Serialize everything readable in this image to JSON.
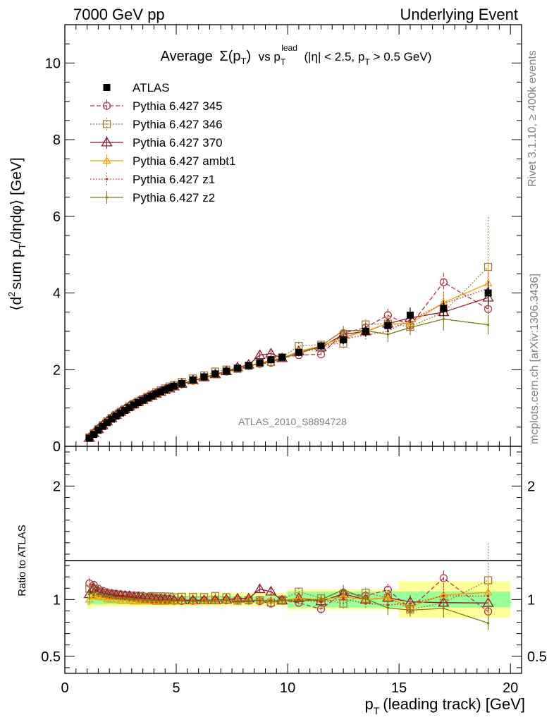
{
  "header": {
    "left": "7000 GeV pp",
    "right": "Underlying Event"
  },
  "side_labels": {
    "rivet": "Rivet 3.1.10, ≥ 400k events",
    "mcplots": "mcplots.cern.ch [arXiv:1306.3436]"
  },
  "watermark": "ATLAS_2010_S8894728",
  "chart_data": [
    {
      "type": "line",
      "panel": "main",
      "title": {
        "prefix": "Average",
        "sigma": "Σ(p",
        "sigma_sub": "T",
        "sigma_close": ")",
        "vs": "vs p",
        "vs_sup": "lead",
        "vs_sub": "T",
        "rest": "(|η| < 2.5, p",
        "rest_sub": "T",
        "rest_tail": "> 0.5 GeV)"
      },
      "ylabel": {
        "open": "⟨d",
        "sup": "2",
        "mid": "sum p",
        "sub": "T",
        "rest": "/dηdφ⟩ [GeV]"
      },
      "xlim": [
        0,
        20.5
      ],
      "ylim": [
        0,
        11
      ],
      "y_ticks": [
        "0",
        "2",
        "4",
        "6",
        "8",
        "10"
      ],
      "legend_position": "top-left",
      "x": [
        1.1,
        1.3,
        1.5,
        1.7,
        1.9,
        2.1,
        2.3,
        2.5,
        2.7,
        2.9,
        3.1,
        3.3,
        3.5,
        3.7,
        3.9,
        4.1,
        4.3,
        4.5,
        4.7,
        4.9,
        5.25,
        5.75,
        6.25,
        6.75,
        7.25,
        7.75,
        8.25,
        8.75,
        9.25,
        9.75,
        10.5,
        11.5,
        12.5,
        13.5,
        14.5,
        15.5,
        17,
        19
      ],
      "data": {
        "name": "ATLAS",
        "values": [
          0.21,
          0.31,
          0.42,
          0.52,
          0.62,
          0.71,
          0.79,
          0.87,
          0.94,
          1.01,
          1.08,
          1.14,
          1.2,
          1.26,
          1.31,
          1.37,
          1.42,
          1.47,
          1.52,
          1.57,
          1.64,
          1.73,
          1.81,
          1.89,
          1.96,
          2.04,
          2.11,
          2.18,
          2.26,
          2.32,
          2.45,
          2.62,
          2.78,
          3.0,
          3.15,
          3.42,
          3.6,
          4.0
        ],
        "err": [
          0.01,
          0.01,
          0.01,
          0.01,
          0.01,
          0.01,
          0.01,
          0.01,
          0.01,
          0.02,
          0.02,
          0.02,
          0.02,
          0.02,
          0.02,
          0.02,
          0.03,
          0.03,
          0.03,
          0.03,
          0.03,
          0.04,
          0.04,
          0.05,
          0.05,
          0.06,
          0.06,
          0.07,
          0.08,
          0.09,
          0.08,
          0.1,
          0.12,
          0.14,
          0.17,
          0.2,
          0.2,
          0.3
        ],
        "color": "#000000"
      },
      "series": [
        {
          "name": "Pythia 6.427 345",
          "color": "#b03a48",
          "marker": "circle-open",
          "dash": "6,3",
          "values": [
            0.24,
            0.35,
            0.46,
            0.56,
            0.66,
            0.75,
            0.83,
            0.91,
            0.98,
            1.05,
            1.12,
            1.18,
            1.24,
            1.29,
            1.34,
            1.39,
            1.44,
            1.48,
            1.53,
            1.55,
            1.62,
            1.71,
            1.8,
            1.88,
            1.95,
            2.03,
            2.09,
            2.15,
            2.18,
            2.31,
            2.38,
            2.4,
            2.95,
            3.1,
            3.42,
            3.15,
            4.28,
            3.58
          ],
          "err": [
            0.01,
            0.01,
            0.01,
            0.01,
            0.01,
            0.01,
            0.01,
            0.01,
            0.01,
            0.02,
            0.02,
            0.02,
            0.02,
            0.02,
            0.02,
            0.02,
            0.03,
            0.03,
            0.03,
            0.03,
            0.03,
            0.04,
            0.04,
            0.05,
            0.05,
            0.06,
            0.06,
            0.07,
            0.08,
            0.09,
            0.08,
            0.1,
            0.12,
            0.14,
            0.17,
            0.2,
            0.25,
            0.3
          ]
        },
        {
          "name": "Pythia 6.427 346",
          "color": "#a08040",
          "marker": "square-open",
          "dash": "2,2",
          "values": [
            0.23,
            0.34,
            0.45,
            0.55,
            0.65,
            0.74,
            0.82,
            0.9,
            0.97,
            1.04,
            1.11,
            1.17,
            1.23,
            1.29,
            1.35,
            1.41,
            1.46,
            1.51,
            1.56,
            1.6,
            1.68,
            1.77,
            1.85,
            1.95,
            2.0,
            2.02,
            2.1,
            2.17,
            2.2,
            2.32,
            2.62,
            2.65,
            2.68,
            3.18,
            3.2,
            3.12,
            3.5,
            4.68
          ],
          "err": [
            0.01,
            0.01,
            0.01,
            0.01,
            0.01,
            0.01,
            0.01,
            0.01,
            0.01,
            0.02,
            0.02,
            0.02,
            0.02,
            0.02,
            0.02,
            0.02,
            0.03,
            0.03,
            0.03,
            0.03,
            0.03,
            0.04,
            0.04,
            0.05,
            0.05,
            0.06,
            0.06,
            0.07,
            0.08,
            0.09,
            0.08,
            0.1,
            0.12,
            0.14,
            0.17,
            0.2,
            0.3,
            1.3
          ]
        },
        {
          "name": "Pythia 6.427 370",
          "color": "#8b1a2e",
          "marker": "triangle-open",
          "dash": "",
          "values": [
            0.22,
            0.34,
            0.45,
            0.55,
            0.65,
            0.74,
            0.82,
            0.9,
            0.97,
            1.04,
            1.1,
            1.16,
            1.21,
            1.27,
            1.32,
            1.37,
            1.42,
            1.47,
            1.51,
            1.56,
            1.63,
            1.72,
            1.8,
            1.88,
            1.96,
            2.06,
            2.13,
            2.38,
            2.42,
            2.3,
            2.48,
            2.58,
            2.92,
            3.0,
            3.2,
            3.35,
            3.5,
            3.88
          ],
          "err": [
            0.01,
            0.01,
            0.01,
            0.01,
            0.01,
            0.01,
            0.01,
            0.01,
            0.01,
            0.02,
            0.02,
            0.02,
            0.02,
            0.02,
            0.02,
            0.02,
            0.03,
            0.03,
            0.03,
            0.03,
            0.03,
            0.04,
            0.04,
            0.05,
            0.05,
            0.06,
            0.06,
            0.07,
            0.08,
            0.09,
            0.08,
            0.1,
            0.12,
            0.14,
            0.17,
            0.2,
            0.25,
            0.3
          ]
        },
        {
          "name": "Pythia 6.427 ambt1",
          "color": "#f5a000",
          "marker": "triangle-open-small",
          "dash": "",
          "values": [
            0.21,
            0.32,
            0.43,
            0.53,
            0.62,
            0.71,
            0.79,
            0.86,
            0.93,
            1.0,
            1.06,
            1.12,
            1.18,
            1.24,
            1.29,
            1.34,
            1.39,
            1.44,
            1.49,
            1.54,
            1.62,
            1.7,
            1.79,
            1.87,
            1.95,
            2.02,
            2.1,
            2.17,
            2.24,
            2.3,
            2.48,
            2.62,
            2.85,
            3.0,
            3.2,
            3.2,
            3.75,
            4.25
          ],
          "err": [
            0.01,
            0.01,
            0.01,
            0.01,
            0.01,
            0.01,
            0.01,
            0.01,
            0.01,
            0.02,
            0.02,
            0.02,
            0.02,
            0.02,
            0.02,
            0.02,
            0.03,
            0.03,
            0.03,
            0.03,
            0.03,
            0.04,
            0.04,
            0.05,
            0.05,
            0.06,
            0.06,
            0.07,
            0.08,
            0.09,
            0.08,
            0.1,
            0.12,
            0.14,
            0.17,
            0.2,
            0.3,
            0.5
          ]
        },
        {
          "name": "Pythia 6.427 z1",
          "color": "#cc1f1f",
          "marker": "dot",
          "dash": "1.5,2.5",
          "values": [
            0.22,
            0.33,
            0.44,
            0.54,
            0.64,
            0.73,
            0.81,
            0.89,
            0.96,
            1.03,
            1.09,
            1.15,
            1.21,
            1.26,
            1.31,
            1.36,
            1.41,
            1.46,
            1.51,
            1.56,
            1.63,
            1.72,
            1.8,
            1.88,
            1.95,
            2.02,
            2.1,
            2.17,
            2.24,
            2.31,
            2.44,
            2.56,
            2.8,
            2.9,
            3.0,
            3.3,
            3.72,
            4.12
          ],
          "err": [
            0.01,
            0.01,
            0.01,
            0.01,
            0.01,
            0.01,
            0.01,
            0.01,
            0.01,
            0.02,
            0.02,
            0.02,
            0.02,
            0.02,
            0.02,
            0.02,
            0.03,
            0.03,
            0.03,
            0.03,
            0.03,
            0.04,
            0.04,
            0.05,
            0.05,
            0.06,
            0.06,
            0.07,
            0.08,
            0.09,
            0.08,
            0.1,
            0.12,
            0.14,
            0.17,
            0.2,
            0.3,
            0.4
          ]
        },
        {
          "name": "Pythia 6.427 z2",
          "color": "#7a7a10",
          "marker": "dot",
          "dash": "",
          "values": [
            0.22,
            0.33,
            0.44,
            0.54,
            0.64,
            0.73,
            0.8,
            0.88,
            0.95,
            1.01,
            1.08,
            1.14,
            1.19,
            1.25,
            1.3,
            1.35,
            1.4,
            1.45,
            1.5,
            1.55,
            1.62,
            1.7,
            1.78,
            1.86,
            1.94,
            2.01,
            2.09,
            2.16,
            2.22,
            2.3,
            2.42,
            2.62,
            3.02,
            3.02,
            2.92,
            3.1,
            3.32,
            3.17
          ],
          "err": [
            0.01,
            0.01,
            0.01,
            0.01,
            0.01,
            0.01,
            0.01,
            0.01,
            0.01,
            0.02,
            0.02,
            0.02,
            0.02,
            0.02,
            0.02,
            0.02,
            0.03,
            0.03,
            0.03,
            0.03,
            0.03,
            0.04,
            0.04,
            0.05,
            0.05,
            0.06,
            0.06,
            0.07,
            0.08,
            0.09,
            0.08,
            0.1,
            0.12,
            0.14,
            0.2,
            0.2,
            0.3,
            0.25
          ]
        }
      ]
    },
    {
      "type": "line",
      "panel": "ratio",
      "ylabel": "Ratio to ATLAS",
      "xlabel": {
        "main": "p",
        "sub": "T",
        "rest": "(leading track) [GeV]"
      },
      "xlim": [
        0,
        20.5
      ],
      "ylim": [
        0.35,
        2.35
      ],
      "y_ticks_left": [
        "0.5",
        "1",
        "2"
      ],
      "y_ticks_right": [
        "0.5",
        "1",
        "2"
      ],
      "x_ticks": [
        "0",
        "5",
        "10",
        "15",
        "20"
      ],
      "uncertainty_bands": [
        {
          "x0": 1.0,
          "x1": 1.2,
          "inner": 0.05,
          "outer": 0.08
        },
        {
          "x0": 1.2,
          "x1": 5.0,
          "inner": 0.04,
          "outer": 0.06
        },
        {
          "x0": 5.0,
          "x1": 10.0,
          "inner": 0.03,
          "outer": 0.06
        },
        {
          "x0": 10.0,
          "x1": 15.0,
          "inner": 0.07,
          "outer": 0.09
        },
        {
          "x0": 15.0,
          "x1": 20.0,
          "inner": 0.07,
          "outer": 0.16
        }
      ],
      "band_colors": {
        "inner": "#99ff99",
        "outer": "#ffff99"
      }
    }
  ]
}
